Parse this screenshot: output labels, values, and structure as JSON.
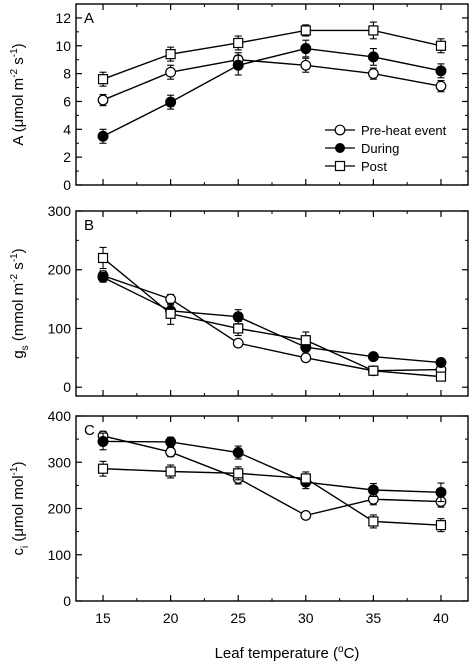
{
  "chart_data": [
    {
      "panel": "A",
      "type": "line",
      "ylabel_main": "A (",
      "ylabel_unit_text": "μmol m",
      "ylabel_exp1": "-2",
      "ylabel_mid": " s",
      "ylabel_exp2": "-1",
      "ylabel_close": ")",
      "ylim": [
        0,
        13
      ],
      "yticks": [
        0,
        2,
        4,
        6,
        8,
        10,
        12
      ],
      "xlim": [
        13,
        42
      ],
      "x": [
        15,
        20,
        25,
        30,
        35,
        40
      ],
      "legend": {
        "position": "bottom-right",
        "entries": [
          "Pre-heat event",
          "During",
          "Post"
        ]
      },
      "series": [
        {
          "name": "Pre-heat event",
          "marker": "open-circle",
          "values": [
            6.1,
            8.1,
            9.0,
            8.6,
            8.0,
            7.1
          ],
          "errors": [
            0.4,
            0.5,
            0.5,
            0.5,
            0.4,
            0.4
          ]
        },
        {
          "name": "During",
          "marker": "filled-circle",
          "values": [
            3.5,
            5.95,
            8.6,
            9.8,
            9.2,
            8.2
          ],
          "errors": [
            0.5,
            0.5,
            0.7,
            0.6,
            0.6,
            0.5
          ]
        },
        {
          "name": "Post",
          "marker": "open-square",
          "values": [
            7.6,
            9.4,
            10.2,
            11.1,
            11.1,
            10.0
          ],
          "errors": [
            0.5,
            0.5,
            0.5,
            0.4,
            0.6,
            0.5
          ]
        }
      ]
    },
    {
      "panel": "B",
      "type": "line",
      "ylabel_main": "g",
      "ylabel_sub": "s",
      "ylabel_unit_text": " (mmol m",
      "ylabel_exp1": "-2",
      "ylabel_mid": " s",
      "ylabel_exp2": "-1",
      "ylabel_close": ")",
      "ylim": [
        -15,
        300
      ],
      "yticks": [
        0,
        100,
        200,
        300
      ],
      "xlim": [
        13,
        42
      ],
      "x": [
        15,
        20,
        25,
        30,
        35,
        40
      ],
      "series": [
        {
          "name": "Pre-heat event",
          "marker": "open-circle",
          "values": [
            190,
            150,
            75,
            50,
            28,
            30
          ],
          "errors": [
            8,
            8,
            6,
            5,
            4,
            4
          ]
        },
        {
          "name": "During",
          "marker": "filled-circle",
          "values": [
            187,
            130,
            120,
            68,
            52,
            42
          ],
          "errors": [
            8,
            10,
            12,
            8,
            5,
            5
          ]
        },
        {
          "name": "Post",
          "marker": "open-square",
          "values": [
            220,
            125,
            100,
            80,
            28,
            18
          ],
          "errors": [
            18,
            18,
            12,
            14,
            4,
            5
          ]
        }
      ]
    },
    {
      "panel": "C",
      "type": "line",
      "ylabel_main": "c",
      "ylabel_sub": "i",
      "ylabel_unit_text": " (μmol mol",
      "ylabel_exp1": "-1",
      "ylabel_close": ")",
      "ylim": [
        0,
        400
      ],
      "yticks": [
        0,
        100,
        200,
        300,
        400
      ],
      "xlim": [
        13,
        42
      ],
      "x": [
        15,
        20,
        25,
        30,
        35,
        40
      ],
      "xticks": [
        15,
        20,
        25,
        30,
        35,
        40
      ],
      "series": [
        {
          "name": "Pre-heat event",
          "marker": "open-circle",
          "values": [
            357,
            322,
            265,
            185,
            220,
            215
          ],
          "errors": [
            10,
            10,
            12,
            8,
            12,
            12
          ]
        },
        {
          "name": "During",
          "marker": "filled-circle",
          "values": [
            345,
            344,
            321,
            257,
            240,
            235
          ],
          "errors": [
            18,
            10,
            14,
            14,
            14,
            20
          ]
        },
        {
          "name": "Post",
          "marker": "open-square",
          "values": [
            286,
            280,
            276,
            265,
            172,
            164
          ],
          "errors": [
            16,
            14,
            14,
            14,
            14,
            14
          ]
        }
      ]
    }
  ],
  "xlabel_text": "Leaf temperature (",
  "xlabel_deg": "o",
  "xlabel_close": "C)"
}
